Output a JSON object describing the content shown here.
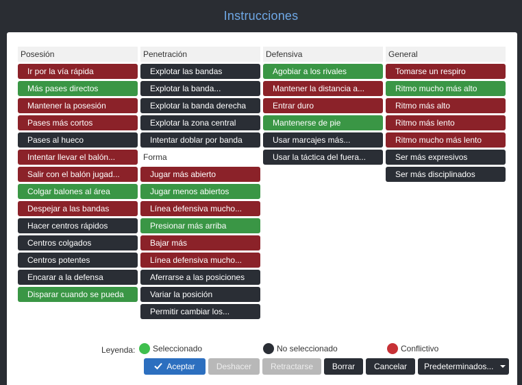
{
  "window": {
    "title": "Instrucciones"
  },
  "columns": {
    "posesion": {
      "header": "Posesión",
      "items": [
        {
          "label": "Ir por la vía rápida",
          "state": "red"
        },
        {
          "label": "Más pases directos",
          "state": "green"
        },
        {
          "label": "Mantener la posesión",
          "state": "red"
        },
        {
          "label": "Pases más cortos",
          "state": "red"
        },
        {
          "label": "Pases al hueco",
          "state": "dark"
        },
        {
          "label": "Intentar llevar el balón...",
          "state": "red"
        },
        {
          "label": "Salir con el balón jugad...",
          "state": "red"
        },
        {
          "label": "Colgar balones al área",
          "state": "green"
        },
        {
          "label": "Despejar a las bandas",
          "state": "red"
        },
        {
          "label": "Hacer centros rápidos",
          "state": "dark"
        },
        {
          "label": "Centros colgados",
          "state": "dark"
        },
        {
          "label": "Centros potentes",
          "state": "dark"
        },
        {
          "label": "Encarar a la defensa",
          "state": "dark"
        },
        {
          "label": "Disparar cuando se pueda",
          "state": "green"
        }
      ]
    },
    "penetracion": {
      "header": "Penetración",
      "items": [
        {
          "label": "Explotar las bandas",
          "state": "dark"
        },
        {
          "label": "Explotar la banda...",
          "state": "dark"
        },
        {
          "label": "Explotar la banda derecha",
          "state": "dark"
        },
        {
          "label": "Explotar la zona central",
          "state": "dark"
        },
        {
          "label": "Intentar doblar por banda",
          "state": "dark"
        }
      ]
    },
    "forma": {
      "header": "Forma",
      "items": [
        {
          "label": "Jugar más abierto",
          "state": "red"
        },
        {
          "label": "Jugar menos abiertos",
          "state": "green"
        },
        {
          "label": "Línea defensiva mucho...",
          "state": "red"
        },
        {
          "label": "Presionar más arriba",
          "state": "green"
        },
        {
          "label": "Bajar más",
          "state": "red"
        },
        {
          "label": "Línea defensiva mucho...",
          "state": "red"
        },
        {
          "label": "Aferrarse a las posiciones",
          "state": "dark"
        },
        {
          "label": "Variar la posición",
          "state": "dark"
        },
        {
          "label": "Permitir cambiar los...",
          "state": "dark"
        }
      ]
    },
    "defensiva": {
      "header": "Defensiva",
      "items": [
        {
          "label": "Agobiar a los rivales",
          "state": "green"
        },
        {
          "label": "Mantener la distancia a...",
          "state": "red"
        },
        {
          "label": "Entrar duro",
          "state": "red"
        },
        {
          "label": "Mantenerse de pie",
          "state": "green"
        },
        {
          "label": "Usar marcajes más...",
          "state": "dark"
        },
        {
          "label": "Usar la táctica del fuera...",
          "state": "dark"
        }
      ]
    },
    "general": {
      "header": "General",
      "items": [
        {
          "label": "Tomarse un respiro",
          "state": "red"
        },
        {
          "label": "Ritmo mucho más alto",
          "state": "green"
        },
        {
          "label": "Ritmo más alto",
          "state": "red"
        },
        {
          "label": "Ritmo más lento",
          "state": "red"
        },
        {
          "label": "Ritmo mucho más lento",
          "state": "red"
        },
        {
          "label": "Ser más expresivos",
          "state": "dark"
        },
        {
          "label": "Ser más disciplinados",
          "state": "dark"
        }
      ]
    }
  },
  "legend": {
    "label": "Leyenda:",
    "selected": "Seleccionado",
    "not_selected": "No seleccionado",
    "conflict": "Conflictivo"
  },
  "actions": {
    "accept": "Aceptar",
    "undo": "Deshacer",
    "revert": "Retractarse",
    "clear": "Borrar",
    "cancel": "Cancelar",
    "defaults": "Predeterminados..."
  },
  "colors": {
    "selected": "#3a9645",
    "not_selected": "#2a2e35",
    "conflict": "#8b2229",
    "title": "#6fa8e6",
    "primary": "#2c6fbf"
  }
}
